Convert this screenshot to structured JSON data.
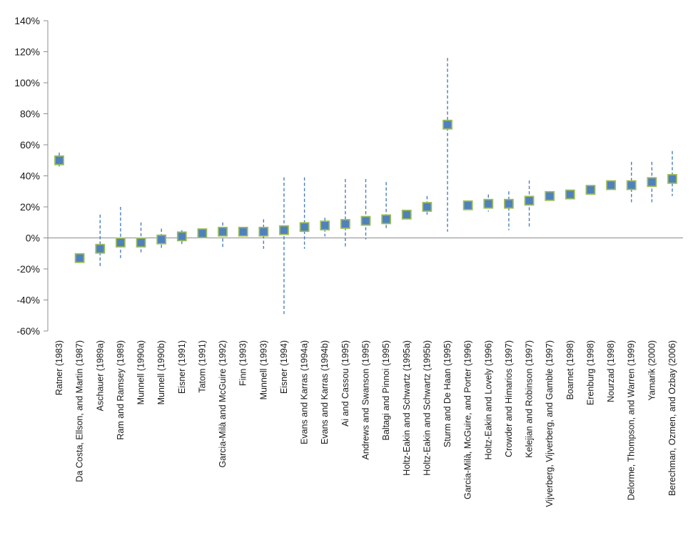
{
  "page": {
    "background_color": "#ffffff"
  },
  "chart_data": {
    "type": "scatter",
    "title": "",
    "xlabel": "",
    "ylabel": "",
    "unit": "%",
    "legend": "none",
    "grid": "zero-line-only",
    "ylim": [
      -60,
      140
    ],
    "y_ticks": [
      {
        "value": 140,
        "label": "140%"
      },
      {
        "value": 120,
        "label": "120%"
      },
      {
        "value": 100,
        "label": "100%"
      },
      {
        "value": 80,
        "label": "80%"
      },
      {
        "value": 60,
        "label": "60%"
      },
      {
        "value": 40,
        "label": "40%"
      },
      {
        "value": 20,
        "label": "20%"
      },
      {
        "value": 0,
        "label": "0%"
      },
      {
        "value": -20,
        "label": "-20%"
      },
      {
        "value": -40,
        "label": "-40%"
      },
      {
        "value": -60,
        "label": "-60%"
      }
    ],
    "marker": {
      "shape": "square",
      "fill": "#4f81bd",
      "stroke": "#9bbb59"
    },
    "error_bar": {
      "style": "dashed",
      "color": "#4a7ebb"
    },
    "axis_color": "#8c8c8c",
    "zero_line_color": "#8c8c8c",
    "studies": [
      {
        "label": "Ratner (1983)",
        "value": 50,
        "ci": [
          46,
          55
        ]
      },
      {
        "label": "Da Costa, Ellson, and Martin (1987)",
        "value": -13,
        "ci": null
      },
      {
        "label": "Aschauer (1989a)",
        "value": -7,
        "ci": [
          -19,
          15
        ]
      },
      {
        "label": "Ram and Ramsey (1989)",
        "value": -3,
        "ci": [
          -13,
          20
        ]
      },
      {
        "label": "Munnell (1990a)",
        "value": -3,
        "ci": [
          -10,
          10
        ]
      },
      {
        "label": "Munnell (1990b)",
        "value": -1,
        "ci": [
          -7,
          6
        ]
      },
      {
        "label": "Eisner (1991)",
        "value": 1,
        "ci": [
          -4,
          5
        ]
      },
      {
        "label": "Tatom (1991)",
        "value": 3,
        "ci": null
      },
      {
        "label": "Garcia-Milà and McGuire (1992)",
        "value": 4,
        "ci": [
          -6,
          10
        ]
      },
      {
        "label": "Finn (1993)",
        "value": 4,
        "ci": null
      },
      {
        "label": "Munnell (1993)",
        "value": 4,
        "ci": [
          -7,
          12
        ]
      },
      {
        "label": "Eisner (1994)",
        "value": 5,
        "ci": [
          -49,
          39
        ]
      },
      {
        "label": "Evans and Karras (1994a)",
        "value": 7,
        "ci": [
          -7,
          39
        ]
      },
      {
        "label": "Evans and Karras (1994b)",
        "value": 8,
        "ci": [
          1,
          13
        ]
      },
      {
        "label": "Ai and Cassou (1995)",
        "value": 9,
        "ci": [
          -6,
          38
        ]
      },
      {
        "label": "Andrews and Swanson (1995)",
        "value": 11,
        "ci": [
          -1,
          38
        ]
      },
      {
        "label": "Baltagi and Pinnoi (1995)",
        "value": 12,
        "ci": [
          6,
          36
        ]
      },
      {
        "label": "Holtz-Eakin and Schwartz (1995a)",
        "value": 15,
        "ci": null
      },
      {
        "label": "Holtz-Eakin and Schwartz (1995b)",
        "value": 20,
        "ci": [
          15,
          27
        ]
      },
      {
        "label": "Sturm and De Haan (1995)",
        "value": 73,
        "ci": [
          4,
          116
        ]
      },
      {
        "label": "Garcia-Milà, McGuire, and Porter (1996)",
        "value": 21,
        "ci": [
          18,
          24
        ]
      },
      {
        "label": "Holtz-Eakin and Lovely (1996)",
        "value": 22,
        "ci": [
          17,
          28
        ]
      },
      {
        "label": "Crowder and Himarios (1997)",
        "value": 22,
        "ci": [
          5,
          30
        ]
      },
      {
        "label": "Kelejian and Robinson (1997)",
        "value": 24,
        "ci": [
          7,
          37
        ]
      },
      {
        "label": "Vijverberg, Vijverberg, and Gamble (1997)",
        "value": 27,
        "ci": null
      },
      {
        "label": "Boarnet (1998)",
        "value": 28,
        "ci": null
      },
      {
        "label": "Erenburg (1998)",
        "value": 31,
        "ci": null
      },
      {
        "label": "Nourzad (1998)",
        "value": 34,
        "ci": null
      },
      {
        "label": "Delorme, Thompson, and Warren (1999)",
        "value": 34,
        "ci": [
          23,
          49
        ]
      },
      {
        "label": "Yamarik (2000)",
        "value": 36,
        "ci": [
          23,
          49
        ]
      },
      {
        "label": "Berechman, Ozmen, and Ozbay (2006)",
        "value": 38,
        "ci": [
          27,
          56
        ]
      }
    ]
  }
}
